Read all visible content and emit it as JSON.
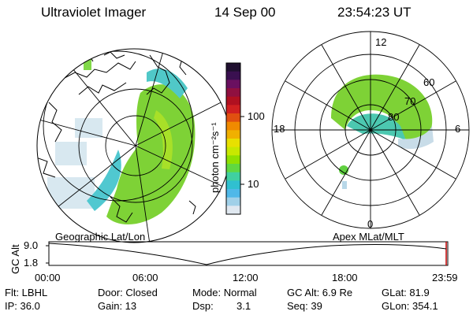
{
  "header": {
    "title": "Ultraviolet Imager",
    "date": "14 Sep 00",
    "time": "23:54:23 UT"
  },
  "colorbar": {
    "unit": "photon cm⁻²s⁻¹",
    "ticks": [
      "100",
      "10"
    ],
    "colors": [
      "#201030",
      "#3a1050",
      "#6a1060",
      "#901040",
      "#b01020",
      "#d02020",
      "#e05010",
      "#f08a00",
      "#f0b000",
      "#e8e000",
      "#c8e800",
      "#90e000",
      "#60d840",
      "#40d0a0",
      "#30c0d0",
      "#50b8e8",
      "#a0d0e8",
      "#e0e8f0"
    ]
  },
  "maps": {
    "left_label": "Geographic Lat/Lon",
    "right_label": "Apex  MLat/MLT"
  },
  "polar": {
    "mlt_labels": [
      "12",
      "18",
      "6",
      "0"
    ],
    "lat_labels": [
      "60",
      "70",
      "80"
    ]
  },
  "altitude_plot": {
    "ylabel": "GC Alt",
    "yticks": [
      "9.0",
      "1.8"
    ],
    "xticks": [
      "00:00",
      "06:00",
      "12:00",
      "18:00",
      "23:59"
    ]
  },
  "footer": {
    "flt": "Flt: LBHL",
    "ip": "IP: 36.0",
    "door": "Door: Closed",
    "gain": "Gain: 13",
    "mode": "Mode: Normal",
    "dsp_label": "Dsp:",
    "dsp_value": "3.1",
    "gcalt": "GC Alt: 6.9 Re",
    "seq": "Seq: 39",
    "glat": "GLat:  81.9",
    "glon": "GLon: 354.1"
  }
}
